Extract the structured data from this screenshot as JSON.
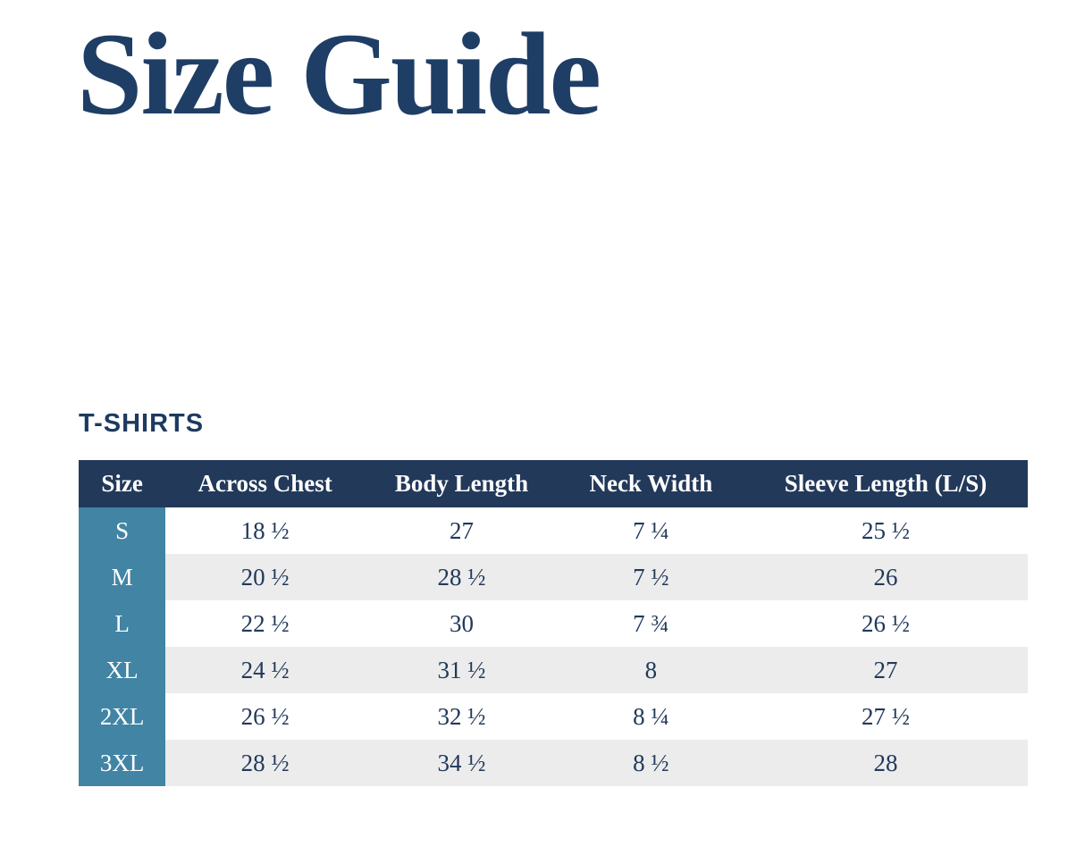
{
  "page": {
    "title": "Size Guide",
    "section_label": "T-SHIRTS"
  },
  "colors": {
    "title_text": "#1f3e66",
    "section_label_text": "#1d3a5f",
    "table_header_bg": "#22395a",
    "table_header_text": "#ffffff",
    "size_column_bg": "#4284a4",
    "size_column_text": "#ffffff",
    "alt_row_bg": "#ececec",
    "cell_text": "#21395a",
    "page_bg": "#ffffff"
  },
  "table": {
    "columns": [
      "Size",
      "Across Chest",
      "Body Length",
      "Neck Width",
      "Sleeve Length (L/S)"
    ],
    "rows": [
      {
        "size": "S",
        "across_chest": "18 ½",
        "body_length": "27",
        "neck_width": "7 ¼",
        "sleeve_length": "25 ½"
      },
      {
        "size": "M",
        "across_chest": "20 ½",
        "body_length": "28 ½",
        "neck_width": "7 ½",
        "sleeve_length": "26"
      },
      {
        "size": "L",
        "across_chest": "22 ½",
        "body_length": "30",
        "neck_width": "7 ¾",
        "sleeve_length": "26 ½"
      },
      {
        "size": "XL",
        "across_chest": "24 ½",
        "body_length": "31 ½",
        "neck_width": "8",
        "sleeve_length": "27"
      },
      {
        "size": "2XL",
        "across_chest": "26 ½",
        "body_length": "32 ½",
        "neck_width": "8 ¼",
        "sleeve_length": "27 ½"
      },
      {
        "size": "3XL",
        "across_chest": "28 ½",
        "body_length": "34 ½",
        "neck_width": "8 ½",
        "sleeve_length": "28"
      }
    ]
  }
}
